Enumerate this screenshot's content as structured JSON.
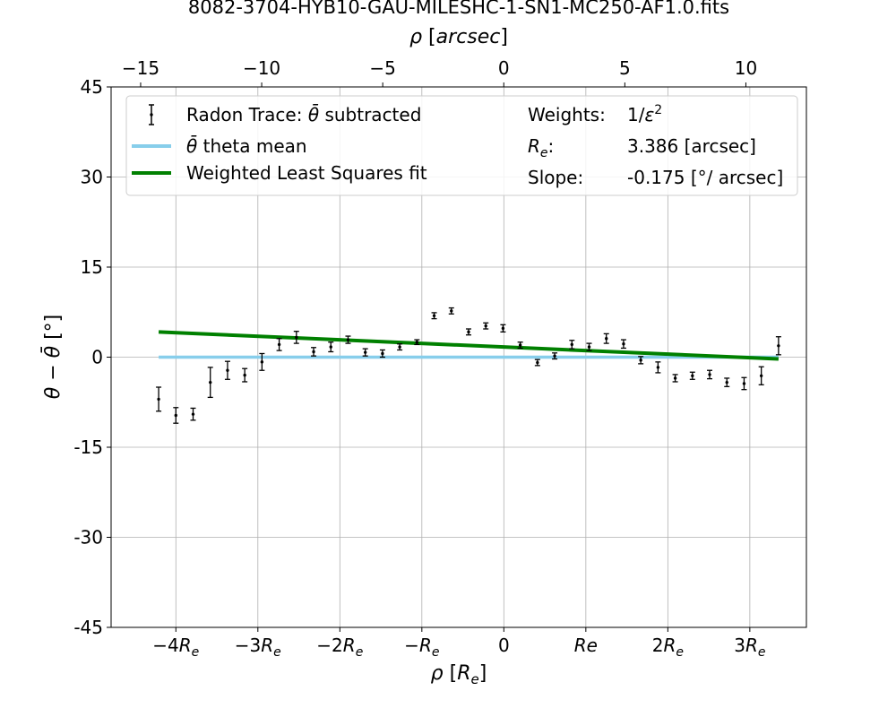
{
  "chart_data": {
    "type": "scatter",
    "title": "8082-3704-HYB10-GAU-MILESHC-1-SN1-MC250-AF1.0.fits",
    "xlabel_bottom": "ρ [R_e]",
    "xlabel_top": "ρ [arcsec]",
    "ylabel": "θ − θ̄ [°]",
    "xlim_re": [
      -4.79,
      3.69
    ],
    "xlim_arcsec": [
      -16.22,
      12.5
    ],
    "ylim": [
      -45,
      45
    ],
    "grid": true,
    "legend_position": "top",
    "y_ticks": [
      45,
      30,
      15,
      0,
      -15,
      -30,
      -45
    ],
    "y_tick_labels": [
      "45",
      "30",
      "15",
      "0",
      "-15",
      "-30",
      "-45"
    ],
    "x_top_ticks": [
      -15,
      -10,
      -5,
      0,
      5,
      10
    ],
    "x_top_tick_labels": [
      "−15",
      "−10",
      "−5",
      "0",
      "5",
      "10"
    ],
    "x_bottom_ticks": [
      -4,
      -3,
      -2,
      -1,
      0,
      1,
      2,
      3
    ],
    "x_bottom_tick_labels": [
      {
        "main": "−4R",
        "sub": "e"
      },
      {
        "main": "−3R",
        "sub": "e"
      },
      {
        "main": "−2R",
        "sub": "e"
      },
      {
        "main": "−R",
        "sub": "e"
      },
      {
        "main": "0",
        "sub": ""
      },
      {
        "main": "Re",
        "sub": ""
      },
      {
        "main": "2R",
        "sub": "e"
      },
      {
        "main": "3R",
        "sub": "e"
      }
    ],
    "series": [
      {
        "name": "Radon Trace: θ̄ subtracted",
        "kind": "errorbar",
        "color": "#000000",
        "x_re": [
          -4.21,
          -4.0,
          -3.79,
          -3.58,
          -3.37,
          -3.16,
          -2.95,
          -2.74,
          -2.53,
          -2.32,
          -2.11,
          -1.9,
          -1.69,
          -1.48,
          -1.27,
          -1.06,
          -0.85,
          -0.64,
          -0.43,
          -0.22,
          -0.01,
          0.2,
          0.41,
          0.62,
          0.83,
          1.04,
          1.25,
          1.46,
          1.67,
          1.88,
          2.09,
          2.3,
          2.51,
          2.72,
          2.93,
          3.14,
          3.35
        ],
        "y": [
          -7.0,
          -9.7,
          -9.5,
          -4.2,
          -2.2,
          -3.0,
          -0.8,
          2.1,
          3.3,
          0.9,
          1.7,
          2.9,
          0.8,
          0.6,
          1.7,
          2.5,
          6.9,
          7.7,
          4.2,
          5.2,
          4.8,
          2.0,
          -0.9,
          0.2,
          2.1,
          1.7,
          3.1,
          2.2,
          -0.5,
          -1.7,
          -3.5,
          -3.1,
          -2.9,
          -4.2,
          -4.4,
          -3.1,
          1.9
        ],
        "yerr": [
          2.0,
          1.3,
          1.0,
          2.5,
          1.5,
          1.1,
          1.4,
          1.0,
          1.0,
          0.7,
          0.8,
          0.6,
          0.6,
          0.6,
          0.5,
          0.4,
          0.5,
          0.5,
          0.5,
          0.5,
          0.6,
          0.5,
          0.5,
          0.5,
          0.7,
          0.6,
          0.8,
          0.7,
          0.6,
          0.9,
          0.6,
          0.6,
          0.7,
          0.7,
          1.0,
          1.5,
          1.5
        ]
      },
      {
        "name": "θ̄ theta mean",
        "kind": "line",
        "color": "#87ceeb",
        "x_re": [
          -4.21,
          3.35
        ],
        "y": [
          0,
          0
        ]
      },
      {
        "name": "Weighted Least Squares fit",
        "kind": "line",
        "color": "#008000",
        "x_re": [
          -4.21,
          3.35
        ],
        "y": [
          4.2,
          -0.3
        ]
      }
    ],
    "legend_info": {
      "weights_label": "Weights:",
      "weights_value": "1/ε²",
      "re_label": "R",
      "re_label_sub": "e",
      "re_label_suffix": ":",
      "re_value": "3.386 [arcsec]",
      "slope_label": "Slope:",
      "slope_value": "-0.175 [°/ arcsec]"
    }
  }
}
